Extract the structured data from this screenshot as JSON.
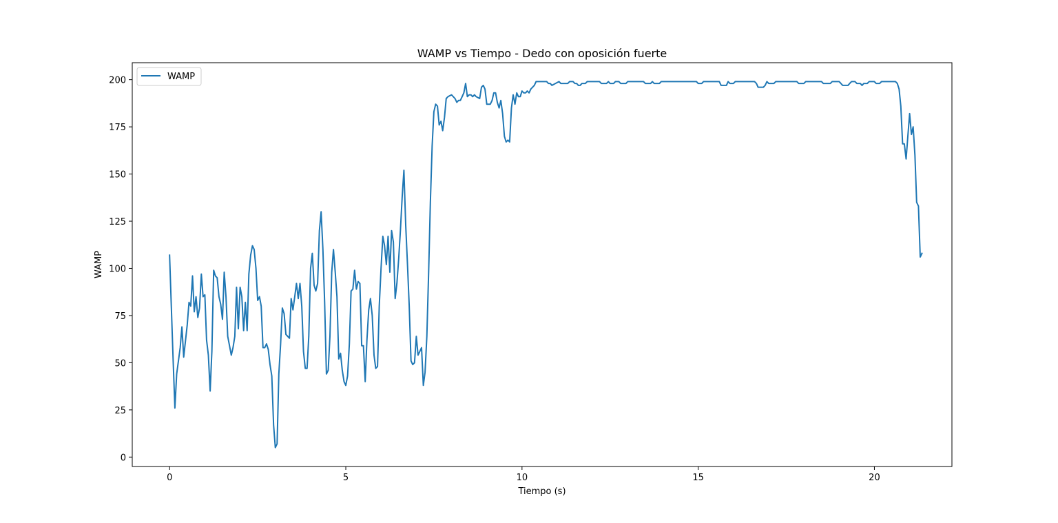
{
  "chart_data": {
    "type": "line",
    "title": "WAMP vs Tiempo - Dedo con oposición fuerte",
    "xlabel": "Tiempo (s)",
    "ylabel": "WAMP",
    "xlim": [
      -1.06,
      22.2
    ],
    "ylim": [
      -5,
      209
    ],
    "xticks": [
      0,
      5,
      10,
      15,
      20
    ],
    "yticks": [
      0,
      25,
      50,
      75,
      100,
      125,
      150,
      175,
      200
    ],
    "grid": false,
    "legend_position": "upper-left",
    "series": [
      {
        "name": "WAMP",
        "color": "#1f77b4",
        "points": [
          [
            0.0,
            107
          ],
          [
            0.1,
            52
          ],
          [
            0.15,
            26
          ],
          [
            0.2,
            44
          ],
          [
            0.3,
            58
          ],
          [
            0.35,
            69
          ],
          [
            0.4,
            53
          ],
          [
            0.5,
            70
          ],
          [
            0.55,
            82
          ],
          [
            0.6,
            80
          ],
          [
            0.65,
            96
          ],
          [
            0.7,
            77
          ],
          [
            0.75,
            85
          ],
          [
            0.8,
            74
          ],
          [
            0.85,
            79
          ],
          [
            0.9,
            97
          ],
          [
            0.95,
            85
          ],
          [
            1.0,
            86
          ],
          [
            1.05,
            62
          ],
          [
            1.1,
            54
          ],
          [
            1.15,
            35
          ],
          [
            1.2,
            56
          ],
          [
            1.25,
            99
          ],
          [
            1.3,
            96
          ],
          [
            1.35,
            95
          ],
          [
            1.4,
            85
          ],
          [
            1.45,
            81
          ],
          [
            1.5,
            73
          ],
          [
            1.55,
            98
          ],
          [
            1.6,
            85
          ],
          [
            1.65,
            64
          ],
          [
            1.7,
            59
          ],
          [
            1.75,
            54
          ],
          [
            1.8,
            58
          ],
          [
            1.85,
            64
          ],
          [
            1.9,
            90
          ],
          [
            1.95,
            68
          ],
          [
            2.0,
            90
          ],
          [
            2.05,
            85
          ],
          [
            2.1,
            67
          ],
          [
            2.15,
            82
          ],
          [
            2.2,
            67
          ],
          [
            2.25,
            97
          ],
          [
            2.3,
            107
          ],
          [
            2.35,
            112
          ],
          [
            2.4,
            110
          ],
          [
            2.45,
            100
          ],
          [
            2.5,
            83
          ],
          [
            2.55,
            85
          ],
          [
            2.6,
            80
          ],
          [
            2.65,
            58
          ],
          [
            2.7,
            58
          ],
          [
            2.75,
            60
          ],
          [
            2.8,
            57
          ],
          [
            2.85,
            49
          ],
          [
            2.9,
            43
          ],
          [
            2.95,
            17
          ],
          [
            3.0,
            5
          ],
          [
            3.05,
            7
          ],
          [
            3.1,
            44
          ],
          [
            3.15,
            60
          ],
          [
            3.2,
            79
          ],
          [
            3.25,
            76
          ],
          [
            3.3,
            65
          ],
          [
            3.35,
            64
          ],
          [
            3.4,
            63
          ],
          [
            3.45,
            84
          ],
          [
            3.5,
            78
          ],
          [
            3.55,
            85
          ],
          [
            3.6,
            92
          ],
          [
            3.65,
            84
          ],
          [
            3.7,
            92
          ],
          [
            3.75,
            80
          ],
          [
            3.8,
            56
          ],
          [
            3.85,
            47
          ],
          [
            3.9,
            47
          ],
          [
            3.95,
            64
          ],
          [
            4.0,
            100
          ],
          [
            4.05,
            108
          ],
          [
            4.1,
            91
          ],
          [
            4.15,
            88
          ],
          [
            4.2,
            92
          ],
          [
            4.25,
            120
          ],
          [
            4.3,
            130
          ],
          [
            4.35,
            110
          ],
          [
            4.4,
            82
          ],
          [
            4.45,
            44
          ],
          [
            4.5,
            46
          ],
          [
            4.55,
            64
          ],
          [
            4.6,
            98
          ],
          [
            4.65,
            110
          ],
          [
            4.7,
            98
          ],
          [
            4.75,
            85
          ],
          [
            4.8,
            52
          ],
          [
            4.85,
            55
          ],
          [
            4.9,
            46
          ],
          [
            4.95,
            40
          ],
          [
            5.0,
            38
          ],
          [
            5.05,
            43
          ],
          [
            5.1,
            60
          ],
          [
            5.15,
            88
          ],
          [
            5.2,
            89
          ],
          [
            5.25,
            99
          ],
          [
            5.3,
            89
          ],
          [
            5.35,
            93
          ],
          [
            5.4,
            92
          ],
          [
            5.45,
            59
          ],
          [
            5.5,
            59
          ],
          [
            5.55,
            40
          ],
          [
            5.6,
            62
          ],
          [
            5.65,
            78
          ],
          [
            5.7,
            84
          ],
          [
            5.75,
            75
          ],
          [
            5.8,
            54
          ],
          [
            5.85,
            47
          ],
          [
            5.9,
            48
          ],
          [
            5.95,
            80
          ],
          [
            6.0,
            100
          ],
          [
            6.05,
            117
          ],
          [
            6.1,
            112
          ],
          [
            6.15,
            102
          ],
          [
            6.2,
            117
          ],
          [
            6.25,
            98
          ],
          [
            6.3,
            120
          ],
          [
            6.35,
            114
          ],
          [
            6.4,
            84
          ],
          [
            6.45,
            92
          ],
          [
            6.5,
            105
          ],
          [
            6.55,
            120
          ],
          [
            6.6,
            138
          ],
          [
            6.65,
            152
          ],
          [
            6.7,
            123
          ],
          [
            6.75,
            102
          ],
          [
            6.8,
            80
          ],
          [
            6.85,
            51
          ],
          [
            6.9,
            49
          ],
          [
            6.95,
            50
          ],
          [
            7.0,
            64
          ],
          [
            7.05,
            54
          ],
          [
            7.1,
            56
          ],
          [
            7.15,
            58
          ],
          [
            7.2,
            38
          ],
          [
            7.25,
            45
          ],
          [
            7.3,
            64
          ],
          [
            7.35,
            98
          ],
          [
            7.4,
            135
          ],
          [
            7.45,
            165
          ],
          [
            7.5,
            183
          ],
          [
            7.55,
            187
          ],
          [
            7.6,
            186
          ],
          [
            7.65,
            176
          ],
          [
            7.7,
            178
          ],
          [
            7.75,
            173
          ],
          [
            7.8,
            180
          ],
          [
            7.85,
            190
          ],
          [
            7.9,
            191
          ],
          [
            8.0,
            192
          ],
          [
            8.1,
            190
          ],
          [
            8.15,
            188
          ],
          [
            8.2,
            189
          ],
          [
            8.25,
            189
          ],
          [
            8.3,
            191
          ],
          [
            8.35,
            193
          ],
          [
            8.4,
            198
          ],
          [
            8.45,
            191
          ],
          [
            8.5,
            192
          ],
          [
            8.55,
            192
          ],
          [
            8.6,
            191
          ],
          [
            8.65,
            192
          ],
          [
            8.7,
            191
          ],
          [
            8.8,
            190
          ],
          [
            8.85,
            196
          ],
          [
            8.9,
            197
          ],
          [
            8.95,
            195
          ],
          [
            9.0,
            187
          ],
          [
            9.05,
            187
          ],
          [
            9.1,
            187
          ],
          [
            9.15,
            189
          ],
          [
            9.2,
            193
          ],
          [
            9.25,
            193
          ],
          [
            9.3,
            188
          ],
          [
            9.35,
            185
          ],
          [
            9.4,
            189
          ],
          [
            9.45,
            182
          ],
          [
            9.5,
            170
          ],
          [
            9.55,
            167
          ],
          [
            9.6,
            168
          ],
          [
            9.65,
            167
          ],
          [
            9.7,
            185
          ],
          [
            9.75,
            192
          ],
          [
            9.8,
            187
          ],
          [
            9.85,
            193
          ],
          [
            9.9,
            191
          ],
          [
            9.95,
            191
          ],
          [
            10.0,
            194
          ],
          [
            10.05,
            193
          ],
          [
            10.1,
            193
          ],
          [
            10.15,
            194
          ],
          [
            10.2,
            193
          ],
          [
            10.25,
            195
          ],
          [
            10.3,
            196
          ],
          [
            10.35,
            197
          ],
          [
            10.4,
            199
          ],
          [
            10.5,
            199
          ],
          [
            10.6,
            199
          ],
          [
            10.7,
            199
          ],
          [
            10.75,
            198
          ],
          [
            10.8,
            198
          ],
          [
            10.85,
            197
          ],
          [
            10.95,
            198
          ],
          [
            11.05,
            199
          ],
          [
            11.1,
            198
          ],
          [
            11.3,
            198
          ],
          [
            11.35,
            199
          ],
          [
            11.45,
            199
          ],
          [
            11.5,
            198
          ],
          [
            11.55,
            198
          ],
          [
            11.6,
            197
          ],
          [
            11.65,
            197
          ],
          [
            11.7,
            198
          ],
          [
            11.8,
            198
          ],
          [
            11.85,
            199
          ],
          [
            12.2,
            199
          ],
          [
            12.25,
            198
          ],
          [
            12.4,
            198
          ],
          [
            12.45,
            199
          ],
          [
            12.5,
            198
          ],
          [
            12.6,
            198
          ],
          [
            12.65,
            199
          ],
          [
            12.75,
            199
          ],
          [
            12.8,
            198
          ],
          [
            12.95,
            198
          ],
          [
            13.0,
            199
          ],
          [
            13.45,
            199
          ],
          [
            13.5,
            198
          ],
          [
            13.65,
            198
          ],
          [
            13.7,
            199
          ],
          [
            13.75,
            198
          ],
          [
            13.9,
            198
          ],
          [
            13.95,
            199
          ],
          [
            14.95,
            199
          ],
          [
            15.0,
            198
          ],
          [
            15.1,
            198
          ],
          [
            15.15,
            199
          ],
          [
            15.6,
            199
          ],
          [
            15.65,
            197
          ],
          [
            15.8,
            197
          ],
          [
            15.85,
            199
          ],
          [
            15.9,
            198
          ],
          [
            16.0,
            198
          ],
          [
            16.05,
            199
          ],
          [
            16.6,
            199
          ],
          [
            16.65,
            198
          ],
          [
            16.7,
            196
          ],
          [
            16.85,
            196
          ],
          [
            16.9,
            197
          ],
          [
            16.95,
            199
          ],
          [
            17.0,
            198
          ],
          [
            17.15,
            198
          ],
          [
            17.2,
            199
          ],
          [
            17.8,
            199
          ],
          [
            17.85,
            198
          ],
          [
            18.0,
            198
          ],
          [
            18.05,
            199
          ],
          [
            18.5,
            199
          ],
          [
            18.55,
            198
          ],
          [
            18.75,
            198
          ],
          [
            18.8,
            199
          ],
          [
            19.0,
            199
          ],
          [
            19.05,
            198
          ],
          [
            19.1,
            197
          ],
          [
            19.25,
            197
          ],
          [
            19.3,
            198
          ],
          [
            19.35,
            199
          ],
          [
            19.45,
            199
          ],
          [
            19.5,
            198
          ],
          [
            19.6,
            198
          ],
          [
            19.65,
            197
          ],
          [
            19.7,
            198
          ],
          [
            19.8,
            198
          ],
          [
            19.85,
            199
          ],
          [
            20.0,
            199
          ],
          [
            20.05,
            198
          ],
          [
            20.15,
            198
          ],
          [
            20.2,
            199
          ],
          [
            20.6,
            199
          ],
          [
            20.65,
            198
          ],
          [
            20.7,
            195
          ],
          [
            20.75,
            186
          ],
          [
            20.8,
            166
          ],
          [
            20.85,
            166
          ],
          [
            20.9,
            158
          ],
          [
            20.95,
            170
          ],
          [
            21.0,
            182
          ],
          [
            21.05,
            171
          ],
          [
            21.1,
            175
          ],
          [
            21.15,
            160
          ],
          [
            21.2,
            135
          ],
          [
            21.25,
            133
          ],
          [
            21.3,
            106
          ],
          [
            21.35,
            108
          ]
        ]
      }
    ]
  }
}
